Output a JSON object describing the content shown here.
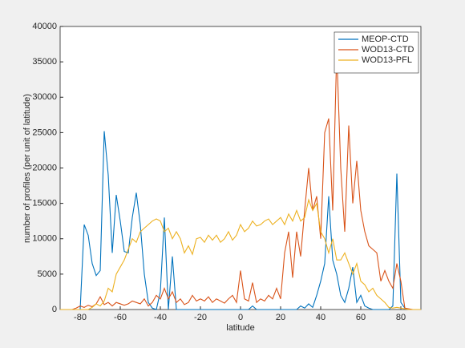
{
  "chart_data": {
    "type": "line",
    "x_label": "latitude",
    "y_label": "number of profiles (per unit of latitude)",
    "x": [
      -90,
      -88,
      -86,
      -84,
      -82,
      -80,
      -78,
      -76,
      -74,
      -72,
      -70,
      -68,
      -66,
      -64,
      -62,
      -60,
      -58,
      -56,
      -54,
      -52,
      -50,
      -48,
      -46,
      -44,
      -42,
      -40,
      -38,
      -36,
      -34,
      -32,
      -30,
      -28,
      -26,
      -24,
      -22,
      -20,
      -18,
      -16,
      -14,
      -12,
      -10,
      -8,
      -6,
      -4,
      -2,
      0,
      2,
      4,
      6,
      8,
      10,
      12,
      14,
      16,
      18,
      20,
      22,
      24,
      26,
      28,
      30,
      32,
      34,
      36,
      38,
      40,
      42,
      44,
      46,
      48,
      50,
      52,
      54,
      56,
      58,
      60,
      62,
      64,
      66,
      68,
      70,
      72,
      74,
      76,
      78,
      80,
      82,
      84,
      86,
      88,
      90
    ],
    "series": [
      {
        "name": "MEOP-CTD",
        "color": "#0072bd",
        "values": [
          0,
          0,
          0,
          0,
          0,
          0,
          12000,
          10500,
          6500,
          4800,
          5500,
          25200,
          19000,
          8000,
          16200,
          12500,
          8200,
          8000,
          13000,
          16500,
          12000,
          5000,
          1000,
          200,
          0,
          2500,
          13000,
          0,
          7500,
          0,
          0,
          0,
          0,
          0,
          0,
          0,
          0,
          0,
          0,
          0,
          0,
          0,
          0,
          0,
          0,
          0,
          0,
          0,
          500,
          0,
          0,
          0,
          0,
          0,
          0,
          0,
          0,
          0,
          0,
          0,
          500,
          200,
          800,
          300,
          2000,
          4000,
          6500,
          16000,
          7000,
          5000,
          2000,
          1000,
          3000,
          6000,
          1000,
          2000,
          500,
          200,
          0,
          0,
          0,
          0,
          0,
          500,
          19200,
          1000,
          200,
          0,
          0,
          0,
          0
        ]
      },
      {
        "name": "WOD13-CTD",
        "color": "#d95319",
        "values": [
          0,
          0,
          0,
          0,
          200,
          500,
          300,
          600,
          400,
          800,
          1800,
          700,
          1000,
          500,
          1000,
          800,
          600,
          800,
          1200,
          1000,
          800,
          1500,
          500,
          1000,
          2000,
          1500,
          3000,
          1500,
          2500,
          1000,
          1500,
          700,
          1000,
          2000,
          1200,
          1500,
          1200,
          1800,
          1000,
          1500,
          1200,
          900,
          1500,
          2000,
          1000,
          5500,
          1500,
          1200,
          3800,
          1000,
          1500,
          1200,
          2000,
          1500,
          3000,
          1500,
          8000,
          11000,
          4500,
          11000,
          7500,
          14000,
          20000,
          14000,
          16000,
          10000,
          25000,
          27000,
          14000,
          36500,
          20000,
          11000,
          26000,
          15000,
          21000,
          14000,
          11000,
          9000,
          8500,
          8000,
          4000,
          5500,
          4000,
          3000,
          6500,
          4000,
          200,
          100,
          0,
          0,
          0
        ]
      },
      {
        "name": "WOD13-PFL",
        "color": "#edb120",
        "values": [
          0,
          0,
          0,
          0,
          0,
          0,
          0,
          0,
          300,
          800,
          500,
          1200,
          3000,
          2500,
          5000,
          6000,
          7000,
          8500,
          10000,
          9500,
          11000,
          11500,
          12000,
          12500,
          12800,
          12500,
          11000,
          11500,
          10000,
          11000,
          10000,
          8000,
          9000,
          7800,
          10000,
          10200,
          9500,
          10500,
          9800,
          10500,
          9500,
          10000,
          11000,
          9800,
          10500,
          12000,
          11000,
          11500,
          12500,
          11800,
          12000,
          12500,
          12800,
          12000,
          12500,
          13000,
          12000,
          13500,
          12500,
          14000,
          12500,
          13000,
          15500,
          14000,
          15000,
          11000,
          10000,
          8000,
          10000,
          7000,
          7000,
          8000,
          6500,
          5000,
          6500,
          4000,
          3500,
          2500,
          3000,
          2000,
          1500,
          1000,
          300,
          200,
          300,
          200,
          100,
          0,
          0,
          0,
          0
        ]
      }
    ],
    "xlim": [
      -90,
      90
    ],
    "xticks": [
      -80,
      -60,
      -40,
      -20,
      0,
      20,
      40,
      60,
      80
    ],
    "ylim": [
      0,
      40000
    ],
    "yticks": [
      0,
      5000,
      10000,
      15000,
      20000,
      25000,
      30000,
      35000,
      40000
    ],
    "legend": "northeast"
  }
}
